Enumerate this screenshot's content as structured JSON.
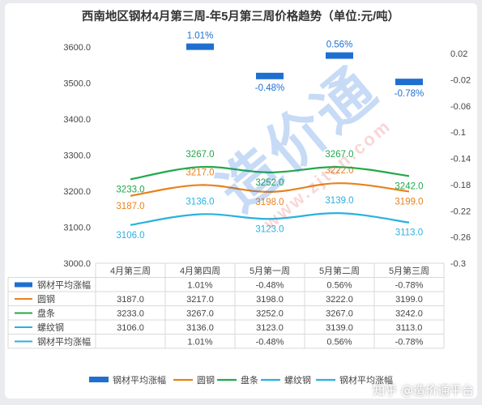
{
  "watermark": {
    "brand": "造价通",
    "url": "www.zjtcn.com"
  },
  "footer_watermark": "知乎 @造价通平台",
  "colors": {
    "bar": "#1f6fd1",
    "round_steel": "#e8821c",
    "wire_rod": "#22a84a",
    "rebar": "#2ab1e0",
    "line_avg": "#2ab1e0",
    "grid": "#d9d9d9",
    "text": "#444444"
  },
  "chart_data": {
    "type": "bar+line",
    "title": "西南地区钢材4月第三周-年5月第三周价格趋势（单位:元/吨）",
    "categories": [
      "4月第三周",
      "4月第四周",
      "5月第一周",
      "5月第二周",
      "5月第三周"
    ],
    "y_left": {
      "min": 3000,
      "max": 3600,
      "ticks": [
        "3000.0",
        "3100.0",
        "3200.0",
        "3300.0",
        "3400.0",
        "3500.0",
        "3600.0"
      ]
    },
    "y_right": {
      "min": -0.3,
      "max": 0.02,
      "ticks": [
        "0.02",
        "-0.02",
        "-0.06",
        "-0.1",
        "-0.14",
        "-0.18",
        "-0.22",
        "-0.26",
        "-0.3"
      ]
    },
    "bar_series": {
      "name": "钢材平均涨幅",
      "values": [
        null,
        1.01,
        -0.48,
        0.56,
        -0.78
      ],
      "labels": [
        "",
        "1.01%",
        "-0.48%",
        "0.56%",
        "-0.78%"
      ]
    },
    "line_series": [
      {
        "name": "圆钢",
        "color": "#e8821c",
        "values": [
          3187.0,
          3217.0,
          3198.0,
          3222.0,
          3199.0
        ],
        "labels": [
          "3187.0",
          "3217.0",
          "3198.0",
          "3222.0",
          "3199.0"
        ]
      },
      {
        "name": "盘条",
        "color": "#22a84a",
        "values": [
          3233.0,
          3267.0,
          3252.0,
          3267.0,
          3242.0
        ],
        "labels": [
          "3233.0",
          "3267.0",
          "3252.0",
          "3267.0",
          "3242.0"
        ]
      },
      {
        "name": "螺纹钢",
        "color": "#2ab1e0",
        "values": [
          3106.0,
          3136.0,
          3123.0,
          3139.0,
          3113.0
        ],
        "labels": [
          "3106.0",
          "3136.0",
          "3123.0",
          "3139.0",
          "3113.0"
        ]
      }
    ],
    "table": {
      "rows": [
        {
          "name": "钢材平均涨幅",
          "marker": "bar",
          "color": "#1f6fd1",
          "cells": [
            "",
            "1.01%",
            "-0.48%",
            "0.56%",
            "-0.78%"
          ]
        },
        {
          "name": "圆钢",
          "marker": "line",
          "color": "#e8821c",
          "cells": [
            "3187.0",
            "3217.0",
            "3198.0",
            "3222.0",
            "3199.0"
          ]
        },
        {
          "name": "盘条",
          "marker": "line",
          "color": "#22a84a",
          "cells": [
            "3233.0",
            "3267.0",
            "3252.0",
            "3267.0",
            "3242.0"
          ]
        },
        {
          "name": "螺纹钢",
          "marker": "line",
          "color": "#2ab1e0",
          "cells": [
            "3106.0",
            "3136.0",
            "3123.0",
            "3139.0",
            "3113.0"
          ]
        },
        {
          "name": "钢材平均涨幅",
          "marker": "line",
          "color": "#2ab1e0",
          "cells": [
            "",
            "1.01%",
            "-0.48%",
            "0.56%",
            "-0.78%"
          ]
        }
      ]
    },
    "legend": {
      "position": "bottom",
      "items": [
        {
          "name": "钢材平均涨幅",
          "marker": "bar",
          "color": "#1f6fd1"
        },
        {
          "name": "圆钢",
          "marker": "line",
          "color": "#e8821c"
        },
        {
          "name": "盘条",
          "marker": "line",
          "color": "#22a84a"
        },
        {
          "name": "螺纹钢",
          "marker": "line",
          "color": "#2ab1e0"
        },
        {
          "name": "钢材平均涨幅",
          "marker": "line",
          "color": "#2ab1e0"
        }
      ]
    }
  }
}
